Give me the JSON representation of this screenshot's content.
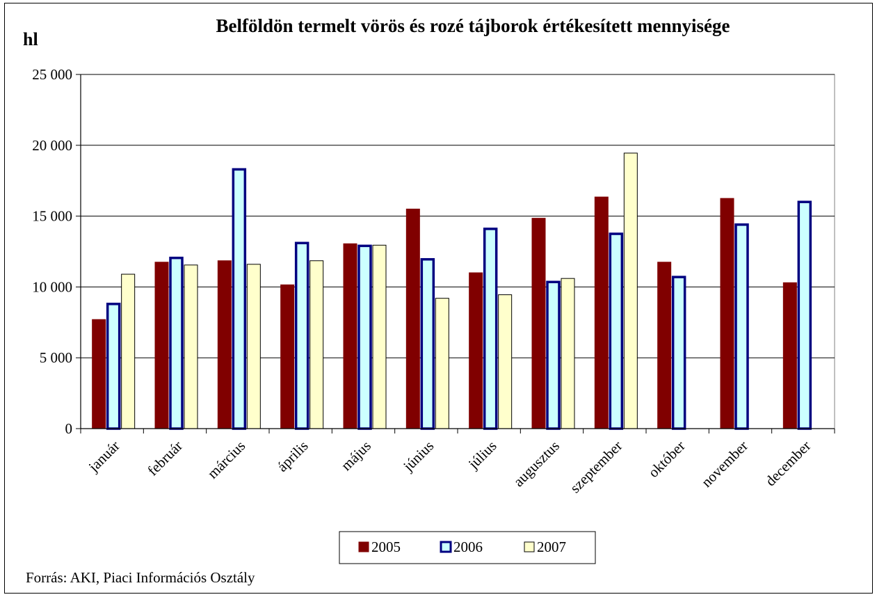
{
  "chart_data": {
    "type": "bar",
    "title": "Belföldön termelt vörös és rozé tájborok értékesített mennyisége",
    "ylabel": "hl",
    "source": "Forrás: AKI, Piaci Információs Osztály",
    "categories": [
      "január",
      "február",
      "március",
      "április",
      "május",
      "június",
      "július",
      "augusztus",
      "szeptember",
      "október",
      "november",
      "december"
    ],
    "ylim": [
      0,
      25000
    ],
    "yticks": [
      0,
      5000,
      10000,
      15000,
      20000,
      25000
    ],
    "ytick_labels": [
      "0",
      "5 000",
      "10 000",
      "15 000",
      "20 000",
      "25 000"
    ],
    "grid": true,
    "legend_position": "bottom",
    "series": [
      {
        "name": "2005",
        "color": "#800000",
        "border": "#800000",
        "values": [
          7700,
          11750,
          11850,
          10150,
          13050,
          15500,
          11000,
          14850,
          16350,
          11750,
          16250,
          10300
        ]
      },
      {
        "name": "2006",
        "color": "#ccffff",
        "border": "#000080",
        "values": [
          8800,
          12050,
          18300,
          13100,
          12900,
          11950,
          14100,
          10350,
          13750,
          10700,
          14400,
          16000
        ]
      },
      {
        "name": "2007",
        "color": "#ffffcc",
        "border": "#000000",
        "values": [
          10900,
          11550,
          11600,
          11850,
          12950,
          9200,
          9450,
          10600,
          19450,
          null,
          null,
          null
        ]
      }
    ]
  }
}
